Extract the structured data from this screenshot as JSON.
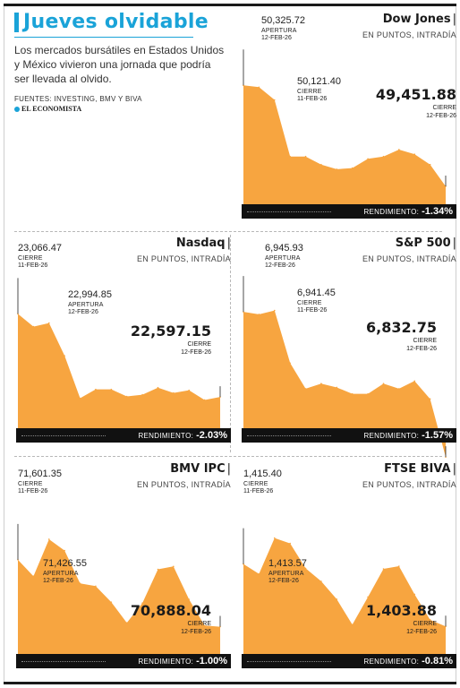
{
  "title": "Jueves olvidable",
  "intro": "Los mercados bursátiles en Estados Unidos y México vivieron una jornada que podría ser llevada al olvido.",
  "sources": "FUENTES: INVESTING, BMV Y BIVA",
  "brand": "EL ECONOMISTA",
  "subtitle": "EN PUNTOS, INTRADÍA",
  "performance_label": "RENDIMIENTO:",
  "accent_color": "#1aa3d8",
  "area_color": "#f7a540",
  "chart_data": [
    {
      "type": "area",
      "title": "Dow Jones",
      "y": [
        50325.72,
        50310,
        50200,
        49710,
        49710,
        49640,
        49600,
        49610,
        49690,
        49710,
        49770,
        49730,
        49640,
        49451.88
      ],
      "ylim": [
        49250,
        50460
      ],
      "open": {
        "value": "50,325.72",
        "label": "APERTURA",
        "date": "12-FEB-26"
      },
      "prev_close": {
        "value": "50,121.40",
        "label": "CIERRE",
        "date": "11-FEB-26"
      },
      "close": {
        "value": "49,451.88",
        "label": "CIERRE",
        "date": "12-FEB-26"
      },
      "performance": "-1.34%"
    },
    {
      "type": "area",
      "title": "Nasdaq",
      "y": [
        23066.47,
        22994.85,
        23015,
        22830,
        22590,
        22640,
        22640,
        22600,
        22610,
        22650,
        22620,
        22635,
        22580,
        22597.15
      ],
      "ylim": [
        22390,
        23180
      ],
      "prev_close": {
        "value": "23,066.47",
        "label": "CIERRE",
        "date": "11-FEB-26"
      },
      "open": {
        "value": "22,994.85",
        "label": "APERTURA",
        "date": "12-FEB-26"
      },
      "close": {
        "value": "22,597.15",
        "label": "CIERRE",
        "date": "12-FEB-26"
      },
      "performance": "-2.03%"
    },
    {
      "type": "area",
      "title": "S&P 500",
      "y": [
        6945.93,
        6944,
        6947,
        6906,
        6886,
        6890,
        6887,
        6882,
        6882,
        6890,
        6886,
        6892,
        6878,
        6832.75
      ],
      "ylim": [
        6851,
        6960
      ],
      "prev_close": {
        "value": "6,941.45",
        "label": "CIERRE",
        "date": "11-FEB-26"
      },
      "open": {
        "value": "6,945.93",
        "label": "APERTURA",
        "date": "12-FEB-26"
      },
      "close": {
        "value": "6,832.75",
        "label": "CIERRE",
        "date": "12-FEB-26"
      },
      "performance": "-1.57%"
    },
    {
      "type": "area",
      "title": "BMV IPC",
      "y": [
        71601.35,
        71426.55,
        71820,
        71700,
        71350,
        71320,
        71150,
        70930,
        71140,
        71500,
        71530,
        71180,
        70900,
        70888.04
      ],
      "ylim": [
        70540,
        72030
      ],
      "prev_close": {
        "value": "71,601.35",
        "label": "CIERRE",
        "date": "11-FEB-26"
      },
      "open": {
        "value": "71,426.55",
        "label": "APERTURA",
        "date": "12-FEB-26"
      },
      "close": {
        "value": "70,888.04",
        "label": "CIERRE",
        "date": "12-FEB-26"
      },
      "performance": "-1.00%"
    },
    {
      "type": "area",
      "title": "FTSE BIVA",
      "y": [
        1415.4,
        1413.57,
        1420.2,
        1419.2,
        1414.6,
        1412.2,
        1408.9,
        1404.2,
        1409.3,
        1414.5,
        1415.0,
        1409.8,
        1405.1,
        1403.88
      ],
      "ylim": [
        1397.8,
        1423.6
      ],
      "prev_close": {
        "value": "1,415.40",
        "label": "CIERRE",
        "date": "11-FEB-26"
      },
      "open": {
        "value": "1,413.57",
        "label": "APERTURA",
        "date": "12-FEB-26"
      },
      "close": {
        "value": "1,403.88",
        "label": "CIERRE",
        "date": "12-FEB-26"
      },
      "performance": "-0.81%"
    }
  ]
}
